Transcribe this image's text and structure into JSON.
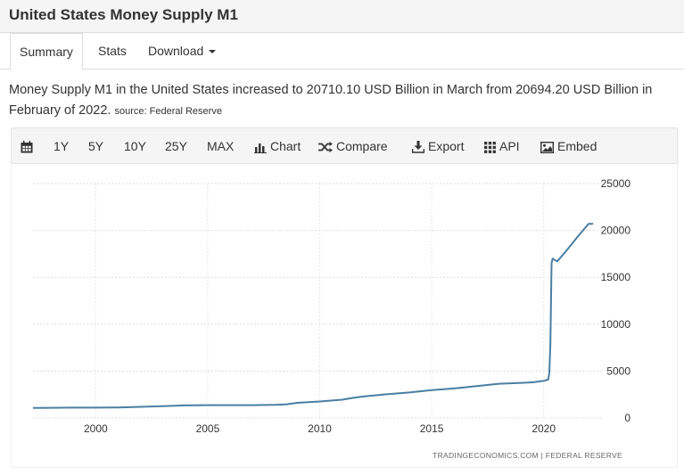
{
  "page": {
    "title": "United States Money Supply M1"
  },
  "tabs": [
    {
      "label": "Summary",
      "active": true
    },
    {
      "label": "Stats",
      "active": false
    },
    {
      "label": "Download",
      "active": false
    }
  ],
  "summary": {
    "text": "Money Supply M1 in the United States increased to 20710.10 USD Billion in March from 20694.20 USD Billion in February of 2022.",
    "source": "source: Federal Reserve"
  },
  "toolbar": {
    "calendar_icon": "calendar-icon",
    "ranges": [
      "1Y",
      "5Y",
      "10Y",
      "25Y",
      "MAX"
    ],
    "chart_label": "Chart",
    "compare_label": "Compare",
    "export_label": "Export",
    "api_label": "API",
    "embed_label": "Embed"
  },
  "chart_data": {
    "type": "line",
    "title": "",
    "xlabel": "",
    "ylabel": "",
    "x_ticks": [
      "2000",
      "2005",
      "2010",
      "2015",
      "2020"
    ],
    "y_ticks": [
      "0",
      "5000",
      "10000",
      "15000",
      "20000",
      "25000"
    ],
    "xlim": [
      1997.2,
      2022.6
    ],
    "ylim": [
      0,
      25000
    ],
    "grid": true,
    "series_color": "#4a7ea3",
    "credit": "TRADINGECONOMICS.COM | FEDERAL RESERVE",
    "series": [
      {
        "x": [
          1997.2,
          1998,
          1999,
          2000,
          2001,
          2002,
          2003,
          2004,
          2005,
          2006,
          2007,
          2008,
          2008.5,
          2009,
          2010,
          2011,
          2011.5,
          2012,
          2013,
          2014,
          2015,
          2016,
          2017,
          2018,
          2019,
          2019.5,
          2020,
          2020.2,
          2020.25,
          2020.3,
          2020.35,
          2020.4,
          2020.6,
          2021,
          2021.5,
          2022,
          2022.2
        ],
        "y": [
          1070,
          1080,
          1100,
          1100,
          1120,
          1190,
          1260,
          1340,
          1370,
          1370,
          1370,
          1400,
          1450,
          1620,
          1760,
          1950,
          2150,
          2300,
          2530,
          2720,
          2980,
          3150,
          3400,
          3650,
          3750,
          3800,
          3950,
          4100,
          4800,
          8000,
          16500,
          17000,
          16700,
          17800,
          19300,
          20690,
          20710
        ]
      }
    ]
  }
}
